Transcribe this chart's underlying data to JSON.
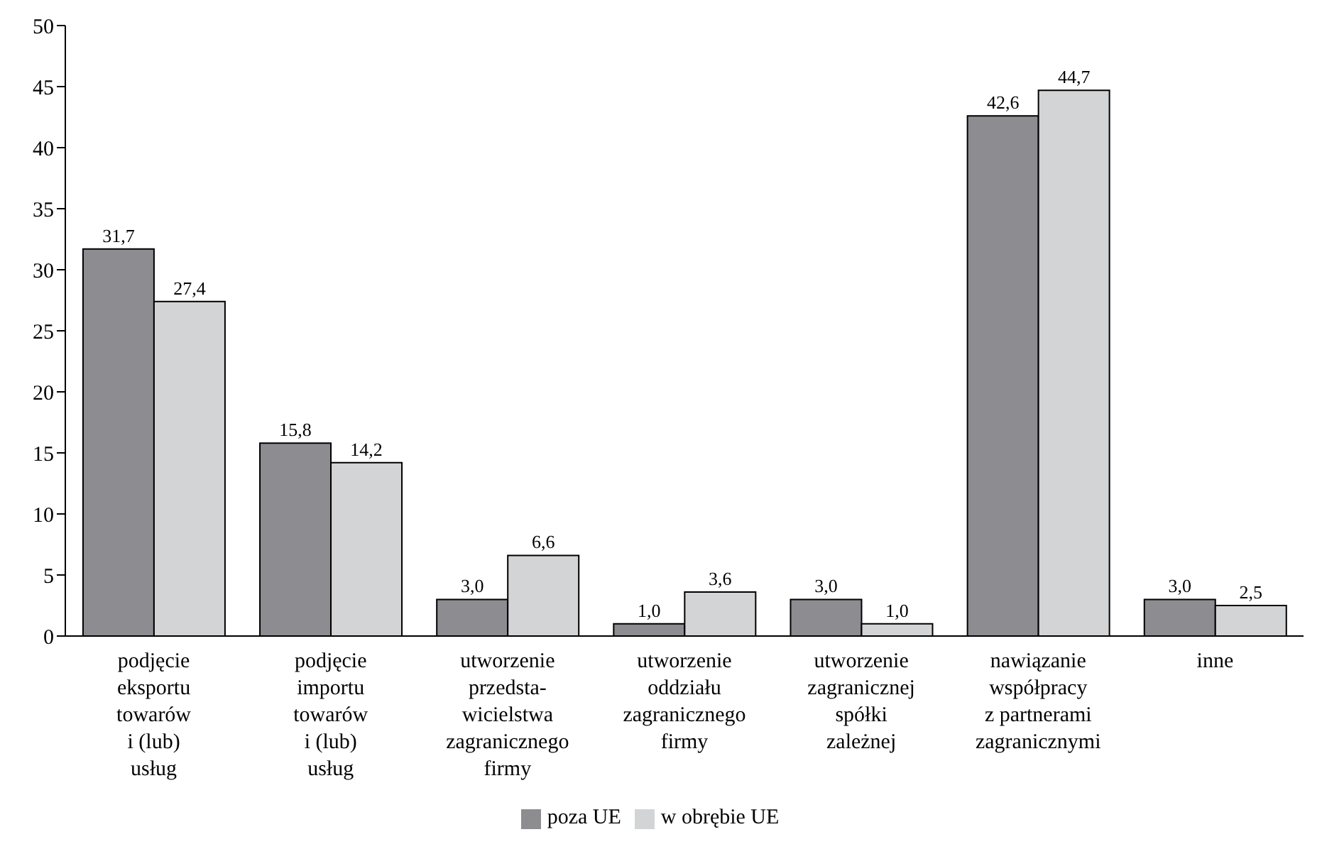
{
  "chart_data": {
    "type": "bar",
    "categories": [
      "podjęcie\neksportu\ntowarów\ni (lub)\nusług",
      "podjęcie\nimportu\ntowarów\ni (lub)\nusług",
      "utworzenie\nprzedsta-\nwicielstwa\nzagranicznego\nfirmy",
      "utworzenie\noddziału\nzagranicznego\nfirmy",
      "utworzenie\nzagranicznej\nspółki\nzależnej",
      "nawiązanie\nwspółpracy\nz partnerami\nzagranicznymi",
      "inne"
    ],
    "series": [
      {
        "name": "poza UE",
        "color": "#8c8c91",
        "values": [
          31.7,
          15.8,
          3.0,
          1.0,
          3.0,
          42.6,
          3.0
        ],
        "value_labels": [
          "31,7",
          "15,8",
          "3,0",
          "1,0",
          "3,0",
          "42,6",
          "3,0"
        ]
      },
      {
        "name": "w obrębie UE",
        "color": "#d3d4d6",
        "values": [
          27.4,
          14.2,
          6.6,
          3.6,
          1.0,
          44.7,
          2.5
        ],
        "value_labels": [
          "27,4",
          "14,2",
          "6,6",
          "3,6",
          "1,0",
          "44,7",
          "2,5"
        ]
      }
    ],
    "ylim": [
      0,
      50
    ],
    "yticks": [
      0,
      5,
      10,
      15,
      20,
      25,
      30,
      35,
      40,
      45,
      50
    ],
    "legend": "bottom"
  }
}
